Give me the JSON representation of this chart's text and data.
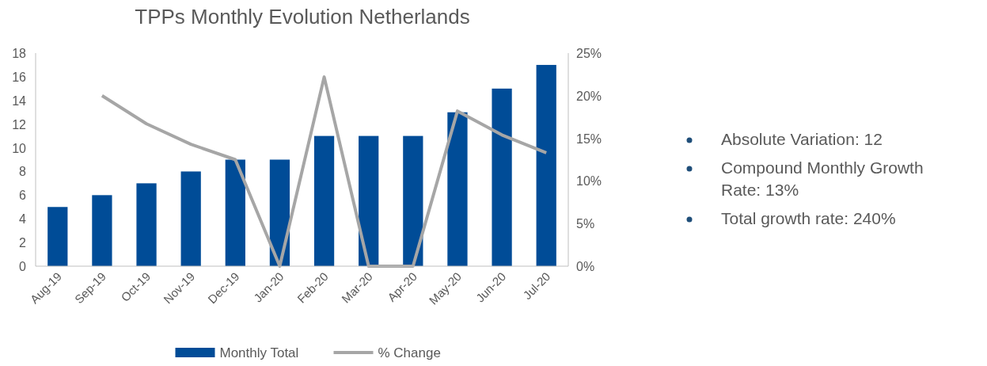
{
  "chart_data": {
    "type": "bar",
    "title": "TPPs Monthly Evolution Netherlands",
    "categories": [
      "Aug-19",
      "Sep-19",
      "Oct-19",
      "Nov-19",
      "Dec-19",
      "Jan-20",
      "Feb-20",
      "Mar-20",
      "Apr-20",
      "May-20",
      "Jun-20",
      "Jul-20"
    ],
    "series": [
      {
        "name": "Monthly Total",
        "color": "#004c97",
        "values": [
          5,
          6,
          7,
          8,
          9,
          9,
          11,
          11,
          11,
          13,
          15,
          17
        ]
      },
      {
        "name": "% Change",
        "type": "line",
        "axis": "y2",
        "color": "#a6a6a6",
        "values": [
          null,
          20,
          16.7,
          14.3,
          12.5,
          0,
          22.2,
          0,
          0,
          18.2,
          15.4,
          13.3
        ]
      }
    ],
    "ylim": [
      0,
      18
    ],
    "yticks": [
      0,
      2,
      4,
      6,
      8,
      10,
      12,
      14,
      16,
      18
    ],
    "y2lim": [
      0,
      25
    ],
    "y2ticks": [
      {
        "value": 0,
        "label": "0%"
      },
      {
        "value": 5,
        "label": "5%"
      },
      {
        "value": 10,
        "label": "10%"
      },
      {
        "value": 15,
        "label": "15%"
      },
      {
        "value": 20,
        "label": "20%"
      },
      {
        "value": 25,
        "label": "25%"
      }
    ],
    "grid": false,
    "legend": "bottom",
    "marker": "none",
    "annotations": [
      "Absolute Variation: 12",
      "Compound Monthly Growth Rate: 13%",
      "Total growth rate: 240%"
    ]
  }
}
